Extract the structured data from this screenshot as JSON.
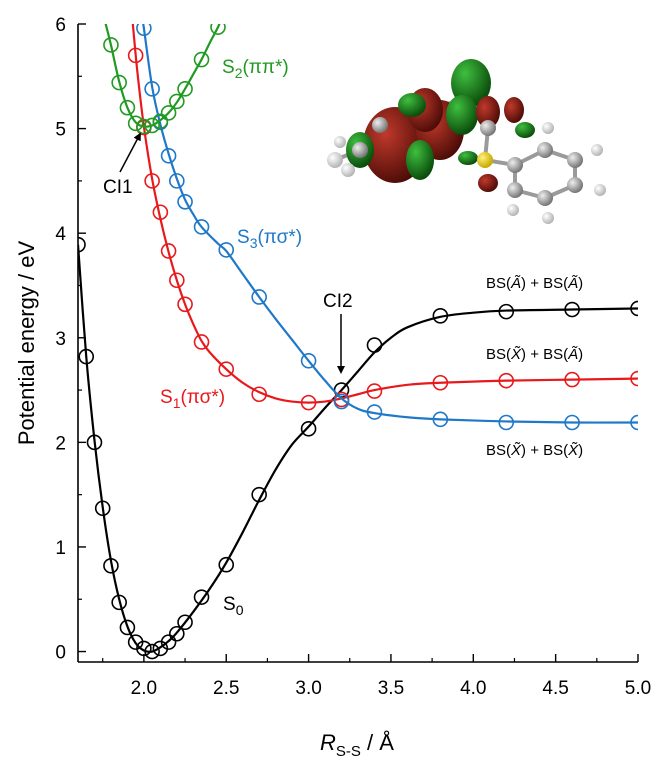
{
  "chart_data": {
    "type": "line",
    "xlabel": "R",
    "xlabel_sub": "S-S",
    "xlabel_unit": " / Å",
    "ylabel": "Potential energy / eV",
    "xlim": [
      1.6,
      5.0
    ],
    "ylim": [
      -0.1,
      6.0
    ],
    "xticks": [
      2.0,
      2.5,
      3.0,
      3.5,
      4.0,
      4.5,
      5.0
    ],
    "xtick_labels": [
      "2.0",
      "2.5",
      "3.0",
      "3.5",
      "4.0",
      "4.5",
      "5.0"
    ],
    "yticks": [
      0,
      1,
      2,
      3,
      4,
      5,
      6
    ],
    "ytick_labels": [
      "0",
      "1",
      "2",
      "3",
      "4",
      "5",
      "6"
    ],
    "grid": false,
    "series": [
      {
        "key": "S0",
        "color": "#000000",
        "label_main": "S",
        "label_sub": "0",
        "label_rest": "",
        "points": [
          [
            1.6,
            3.89
          ],
          [
            1.65,
            2.82
          ],
          [
            1.7,
            2.0
          ],
          [
            1.75,
            1.37
          ],
          [
            1.8,
            0.82
          ],
          [
            1.85,
            0.47
          ],
          [
            1.9,
            0.23
          ],
          [
            1.95,
            0.09
          ],
          [
            2.0,
            0.03
          ],
          [
            2.05,
            0.0
          ],
          [
            2.1,
            0.03
          ],
          [
            2.15,
            0.09
          ],
          [
            2.2,
            0.17
          ],
          [
            2.25,
            0.28
          ],
          [
            2.35,
            0.52
          ],
          [
            2.5,
            0.83
          ],
          [
            2.7,
            1.5
          ],
          [
            3.0,
            2.13
          ],
          [
            3.2,
            2.5
          ],
          [
            3.4,
            2.93
          ],
          [
            3.8,
            3.21
          ],
          [
            4.2,
            3.25
          ],
          [
            4.6,
            3.27
          ],
          [
            5.0,
            3.28
          ]
        ],
        "curve": [
          [
            1.6,
            3.89
          ],
          [
            1.65,
            2.82
          ],
          [
            1.7,
            2.02
          ],
          [
            1.75,
            1.38
          ],
          [
            1.8,
            0.87
          ],
          [
            1.85,
            0.5
          ],
          [
            1.9,
            0.24
          ],
          [
            1.95,
            0.08
          ],
          [
            2.0,
            0.01
          ],
          [
            2.05,
            0.0
          ],
          [
            2.1,
            0.04
          ],
          [
            2.15,
            0.1
          ],
          [
            2.2,
            0.18
          ],
          [
            2.3,
            0.38
          ],
          [
            2.4,
            0.6
          ],
          [
            2.5,
            0.85
          ],
          [
            2.6,
            1.14
          ],
          [
            2.7,
            1.45
          ],
          [
            2.8,
            1.74
          ],
          [
            2.9,
            1.98
          ],
          [
            3.0,
            2.15
          ],
          [
            3.1,
            2.33
          ],
          [
            3.2,
            2.5
          ],
          [
            3.3,
            2.68
          ],
          [
            3.4,
            2.86
          ],
          [
            3.5,
            3.0
          ],
          [
            3.6,
            3.1
          ],
          [
            3.8,
            3.2
          ],
          [
            4.0,
            3.24
          ],
          [
            4.2,
            3.26
          ],
          [
            4.6,
            3.27
          ],
          [
            5.0,
            3.28
          ]
        ]
      },
      {
        "key": "S1",
        "color": "#e8191c",
        "label_main": "S",
        "label_sub": "1",
        "label_rest": "(πσ*)",
        "points": [
          [
            1.95,
            5.7
          ],
          [
            2.0,
            5.01
          ],
          [
            2.05,
            4.5
          ],
          [
            2.1,
            4.2
          ],
          [
            2.15,
            3.83
          ],
          [
            2.2,
            3.55
          ],
          [
            2.25,
            3.32
          ],
          [
            2.35,
            2.96
          ],
          [
            2.5,
            2.7
          ],
          [
            2.7,
            2.46
          ],
          [
            3.0,
            2.38
          ],
          [
            3.2,
            2.41
          ],
          [
            3.4,
            2.49
          ],
          [
            3.8,
            2.57
          ],
          [
            4.2,
            2.59
          ],
          [
            4.6,
            2.6
          ],
          [
            5.0,
            2.61
          ]
        ],
        "curve": [
          [
            1.93,
            6.05
          ],
          [
            1.96,
            5.55
          ],
          [
            2.0,
            5.02
          ],
          [
            2.05,
            4.52
          ],
          [
            2.1,
            4.14
          ],
          [
            2.15,
            3.82
          ],
          [
            2.2,
            3.55
          ],
          [
            2.25,
            3.32
          ],
          [
            2.3,
            3.13
          ],
          [
            2.35,
            2.97
          ],
          [
            2.4,
            2.86
          ],
          [
            2.5,
            2.7
          ],
          [
            2.6,
            2.57
          ],
          [
            2.7,
            2.48
          ],
          [
            2.8,
            2.42
          ],
          [
            2.9,
            2.39
          ],
          [
            3.0,
            2.38
          ],
          [
            3.1,
            2.39
          ],
          [
            3.2,
            2.42
          ],
          [
            3.3,
            2.46
          ],
          [
            3.4,
            2.5
          ],
          [
            3.6,
            2.55
          ],
          [
            3.8,
            2.57
          ],
          [
            4.2,
            2.59
          ],
          [
            4.6,
            2.6
          ],
          [
            5.0,
            2.61
          ]
        ]
      },
      {
        "key": "S2",
        "color": "#209a20",
        "label_main": "S",
        "label_sub": "2",
        "label_rest": "(ππ*)",
        "points": [
          [
            1.8,
            5.8
          ],
          [
            1.85,
            5.44
          ],
          [
            1.9,
            5.2
          ],
          [
            1.95,
            5.05
          ],
          [
            2.0,
            5.02
          ],
          [
            2.05,
            5.03
          ],
          [
            2.1,
            5.07
          ],
          [
            2.15,
            5.15
          ],
          [
            2.2,
            5.26
          ],
          [
            2.25,
            5.38
          ],
          [
            2.35,
            5.66
          ],
          [
            2.45,
            5.97
          ]
        ],
        "curve": [
          [
            1.76,
            6.05
          ],
          [
            1.8,
            5.8
          ],
          [
            1.85,
            5.45
          ],
          [
            1.9,
            5.2
          ],
          [
            1.95,
            5.06
          ],
          [
            2.0,
            5.02
          ],
          [
            2.05,
            5.03
          ],
          [
            2.1,
            5.08
          ],
          [
            2.15,
            5.15
          ],
          [
            2.2,
            5.25
          ],
          [
            2.25,
            5.38
          ],
          [
            2.3,
            5.52
          ],
          [
            2.35,
            5.66
          ],
          [
            2.4,
            5.82
          ],
          [
            2.45,
            5.97
          ],
          [
            2.47,
            6.05
          ]
        ]
      },
      {
        "key": "S3",
        "color": "#1f78c8",
        "label_main": "S",
        "label_sub": "3",
        "label_rest": "(πσ*)",
        "points": [
          [
            2.0,
            5.96
          ],
          [
            2.05,
            5.38
          ],
          [
            2.1,
            5.06
          ],
          [
            2.15,
            4.74
          ],
          [
            2.2,
            4.5
          ],
          [
            2.25,
            4.3
          ],
          [
            2.35,
            4.06
          ],
          [
            2.5,
            3.84
          ],
          [
            2.7,
            3.39
          ],
          [
            3.0,
            2.78
          ],
          [
            3.2,
            2.39
          ],
          [
            3.4,
            2.29
          ],
          [
            3.8,
            2.22
          ],
          [
            4.2,
            2.19
          ],
          [
            4.6,
            2.19
          ],
          [
            5.0,
            2.19
          ]
        ],
        "curve": [
          [
            1.99,
            6.05
          ],
          [
            2.0,
            5.96
          ],
          [
            2.05,
            5.4
          ],
          [
            2.1,
            5.04
          ],
          [
            2.15,
            4.76
          ],
          [
            2.2,
            4.52
          ],
          [
            2.25,
            4.32
          ],
          [
            2.3,
            4.18
          ],
          [
            2.35,
            4.06
          ],
          [
            2.45,
            3.9
          ],
          [
            2.5,
            3.83
          ],
          [
            2.6,
            3.61
          ],
          [
            2.7,
            3.39
          ],
          [
            2.8,
            3.18
          ],
          [
            2.9,
            2.98
          ],
          [
            3.0,
            2.78
          ],
          [
            3.1,
            2.59
          ],
          [
            3.2,
            2.42
          ],
          [
            3.3,
            2.32
          ],
          [
            3.4,
            2.28
          ],
          [
            3.6,
            2.24
          ],
          [
            3.8,
            2.22
          ],
          [
            4.2,
            2.2
          ],
          [
            4.6,
            2.19
          ],
          [
            5.0,
            2.19
          ]
        ]
      }
    ],
    "annotations": {
      "ci1": "CI1",
      "ci2": "CI2",
      "asym1_pre": "BS(",
      "asym1_a": "Ã",
      "asym1_mid": ") + BS(",
      "asym1_b": "Ã",
      "asym1_post": ")",
      "asym2_pre": "BS(",
      "asym2_a": "X̃",
      "asym2_mid": ") + BS(",
      "asym2_b": "Ã",
      "asym2_post": ")",
      "asym3_pre": "BS(",
      "asym3_a": "X̃",
      "asym3_mid": ") + BS(",
      "asym3_b": "X̃",
      "asym3_post": ")"
    }
  }
}
